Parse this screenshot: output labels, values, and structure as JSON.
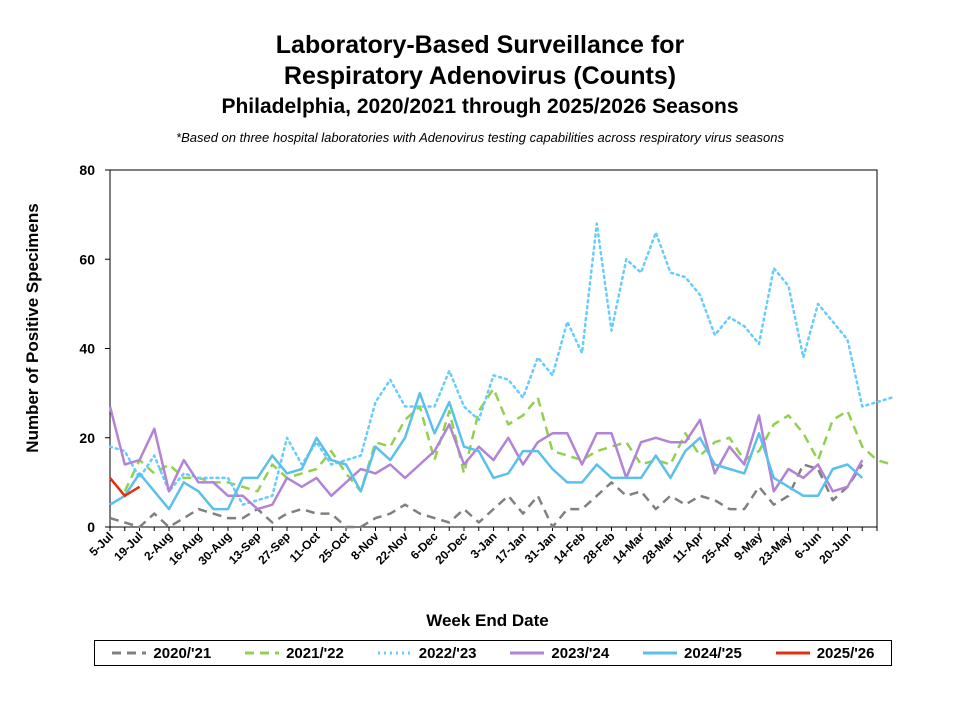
{
  "title": {
    "line1": "Laboratory-Based Surveillance for",
    "line2": "Respiratory Adenovirus (Counts)",
    "line3": "Philadelphia, 2020/2021 through 2025/2026 Seasons"
  },
  "note": "*Based on three hospital laboratories with Adenovirus testing capabilities across respiratory virus seasons",
  "chart_data": {
    "type": "line",
    "title": "Laboratory-Based Surveillance for Respiratory Adenovirus (Counts)",
    "xlabel": "Week End Date",
    "ylabel": "Number of Positive Specimens",
    "ylim": [
      0,
      80
    ],
    "yticks": [
      0,
      20,
      40,
      60,
      80
    ],
    "grid": false,
    "legend_position": "bottom",
    "x_tick_labels": [
      "5-Jul",
      "19-Jul",
      "2-Aug",
      "16-Aug",
      "30-Aug",
      "13-Sep",
      "27-Sep",
      "11-Oct",
      "25-Oct",
      "8-Nov",
      "22-Nov",
      "6-Dec",
      "20-Dec",
      "3-Jan",
      "17-Jan",
      "31-Jan",
      "14-Feb",
      "28-Feb",
      "14-Mar",
      "28-Mar",
      "11-Apr",
      "25-Apr",
      "9-May",
      "23-May",
      "6-Jun",
      "20-Jun"
    ],
    "x_weeks_total": 53,
    "series": [
      {
        "name": "2020/'21",
        "color": "#808080",
        "dash": "dashed",
        "values": [
          2,
          1,
          0,
          3,
          0,
          2,
          4,
          3,
          2,
          2,
          4,
          1,
          3,
          4,
          3,
          3,
          0,
          0,
          2,
          3,
          5,
          3,
          2,
          1,
          4,
          1,
          4,
          7,
          3,
          7,
          0,
          4,
          4,
          7,
          10,
          7,
          8,
          4,
          7,
          5,
          7,
          6,
          4,
          4,
          9,
          5,
          7,
          14,
          13,
          6,
          9,
          14
        ]
      },
      {
        "name": "2021/'22",
        "color": "#92D050",
        "dash": "dashed",
        "values": [
          null,
          8,
          15,
          12,
          14,
          11,
          11,
          10,
          10,
          9,
          8,
          14,
          11,
          12,
          13,
          17,
          12,
          8,
          19,
          18,
          24,
          27,
          15,
          26,
          12,
          26,
          31,
          23,
          25,
          29,
          17,
          16,
          15,
          17,
          18,
          19,
          14,
          15,
          14,
          21,
          16,
          19,
          20,
          15,
          17,
          23,
          25,
          21,
          15,
          24,
          26,
          18,
          15,
          14
        ]
      },
      {
        "name": "2022/'23",
        "color": "#66CCFF",
        "dash": "dotted",
        "values": [
          18,
          17,
          11,
          16,
          8,
          12,
          11,
          11,
          11,
          5,
          6,
          7,
          20,
          14,
          19,
          14,
          15,
          16,
          28,
          33,
          27,
          27,
          27,
          35,
          27,
          24,
          34,
          33,
          29,
          38,
          34,
          46,
          39,
          68,
          44,
          60,
          57,
          66,
          57,
          56,
          52,
          43,
          47,
          45,
          41,
          58,
          54,
          38,
          50,
          46,
          42,
          27,
          28,
          29
        ]
      },
      {
        "name": "2023/'24",
        "color": "#B283D6",
        "dash": "solid",
        "values": [
          27,
          14,
          15,
          22,
          8,
          15,
          10,
          10,
          7,
          7,
          4,
          5,
          11,
          9,
          11,
          7,
          10,
          13,
          12,
          14,
          11,
          14,
          17,
          23,
          14,
          18,
          15,
          20,
          14,
          19,
          21,
          21,
          14,
          21,
          21,
          11,
          19,
          20,
          19,
          19,
          24,
          12,
          18,
          14,
          25,
          8,
          13,
          11,
          14,
          8,
          9,
          15
        ]
      },
      {
        "name": "2024/'25",
        "color": "#5BC0EB",
        "dash": "solid",
        "values": [
          5,
          7,
          12,
          8,
          4,
          10,
          8,
          4,
          4,
          11,
          11,
          16,
          12,
          13,
          20,
          15,
          14,
          8,
          18,
          15,
          20,
          30,
          21,
          28,
          18,
          17,
          11,
          12,
          17,
          17,
          13,
          10,
          10,
          14,
          11,
          11,
          11,
          16,
          11,
          17,
          20,
          14,
          13,
          12,
          21,
          11,
          9,
          7,
          7,
          13,
          14,
          11
        ]
      },
      {
        "name": "2025/'26",
        "color": "#E0300F",
        "dash": "solid",
        "values": [
          11,
          7,
          9
        ]
      }
    ]
  }
}
